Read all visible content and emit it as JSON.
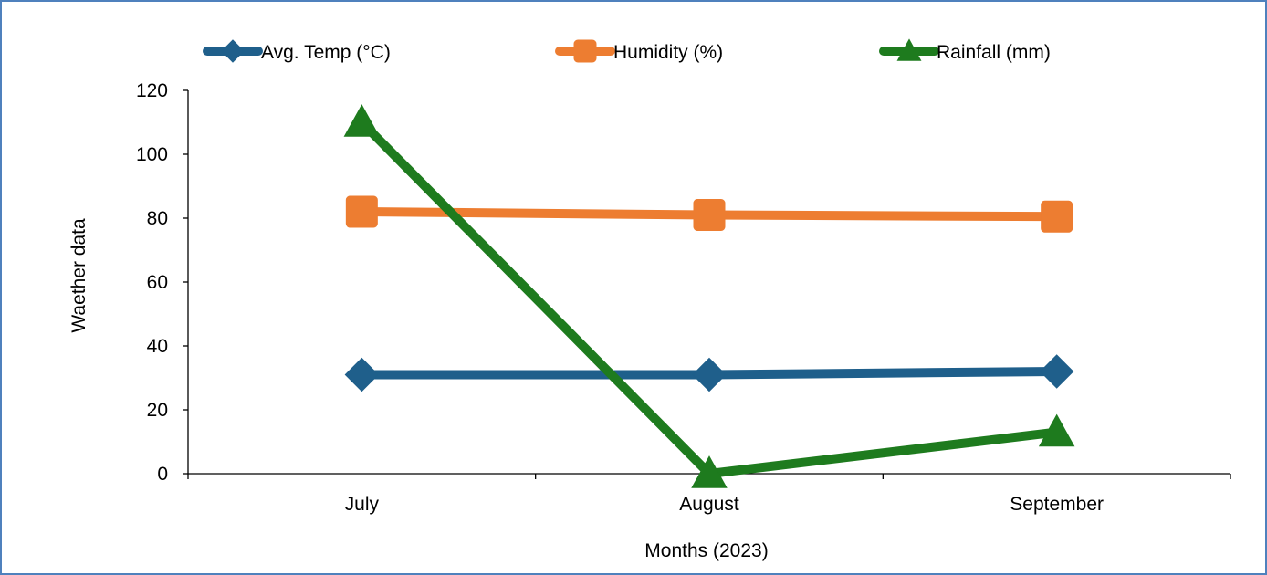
{
  "chart_data": {
    "type": "line",
    "title": "",
    "xlabel": "Months (2023)",
    "ylabel": "Waether  data",
    "categories": [
      "July",
      "August",
      "September"
    ],
    "ylim": [
      0,
      120
    ],
    "yticks": [
      0,
      20,
      40,
      60,
      80,
      100,
      120
    ],
    "grid": false,
    "legend_position": "top",
    "series": [
      {
        "name": "Avg. Temp (°C)",
        "values": [
          31,
          31,
          32
        ],
        "color": "#1f5f8b",
        "marker": "diamond"
      },
      {
        "name": "Humidity (%)",
        "values": [
          82,
          81,
          80.5
        ],
        "color": "#ed7d31",
        "marker": "square"
      },
      {
        "name": "Rainfall (mm)",
        "values": [
          110,
          0,
          13
        ],
        "color": "#1e7b1e",
        "marker": "triangle"
      }
    ]
  }
}
